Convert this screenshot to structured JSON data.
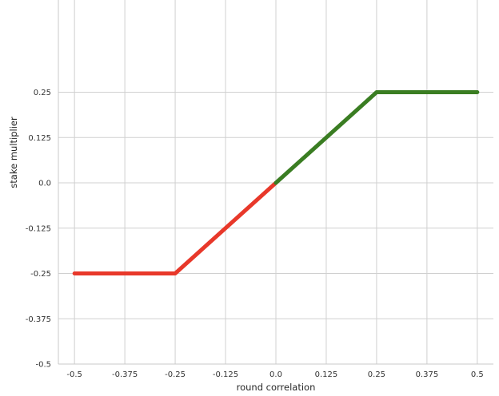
{
  "chart_data": {
    "type": "line",
    "title": "",
    "xlabel": "round correlation",
    "ylabel": "stake multiplier",
    "xlim": [
      -0.54,
      0.54
    ],
    "ylim": [
      -0.5,
      0.5
    ],
    "grid": true,
    "x_ticks": [
      -0.5,
      -0.375,
      -0.25,
      -0.125,
      0.0,
      0.125,
      0.25,
      0.375,
      0.5
    ],
    "x_tick_labels": [
      "-0.5",
      "-0.375",
      "-0.25",
      "-0.125",
      "0.0",
      "0.125",
      "0.25",
      "0.375",
      "0.5"
    ],
    "y_ticks": [
      -0.5,
      -0.375,
      -0.25,
      -0.125,
      0.0,
      0.125,
      0.25
    ],
    "y_tick_labels": [
      "-0.5",
      "-0.375",
      "-0.25",
      "-0.125",
      "0.0",
      "0.125",
      "0.25"
    ],
    "series": [
      {
        "color": "#e8382a",
        "x": [
          -0.5,
          -0.25,
          0.0
        ],
        "y": [
          -0.25,
          -0.25,
          0.0
        ]
      },
      {
        "color": "#3a7d22",
        "x": [
          0.0,
          0.25,
          0.5
        ],
        "y": [
          0.0,
          0.25,
          0.25
        ]
      }
    ]
  }
}
